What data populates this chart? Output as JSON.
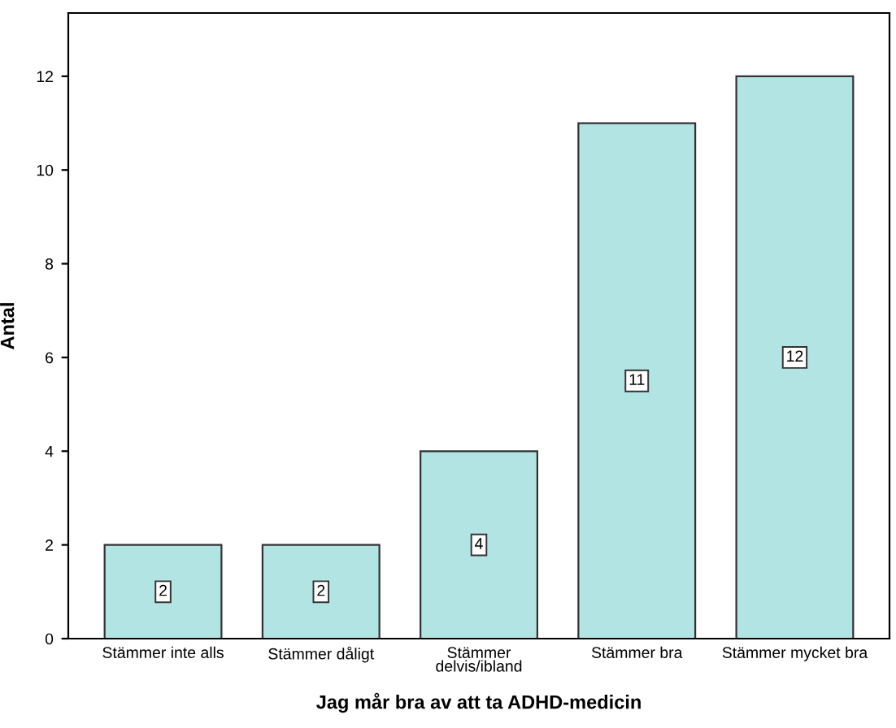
{
  "chart_data": {
    "type": "bar",
    "xlabel": "Jag mår bra av att ta ADHD-medicin",
    "ylabel": "Antal",
    "categories": [
      "Stämmer inte alls",
      "Stämmer dåligt",
      "Stämmer\ndelvis/ibland",
      "Stämmer bra",
      "Stämmer mycket bra"
    ],
    "values": [
      2,
      2,
      4,
      11,
      12
    ],
    "color": "#b3e4e4",
    "ylim": [
      0,
      13.35
    ],
    "yticks": [
      0,
      2,
      4,
      6,
      8,
      10,
      12
    ],
    "grid": false,
    "data_labels": true
  }
}
